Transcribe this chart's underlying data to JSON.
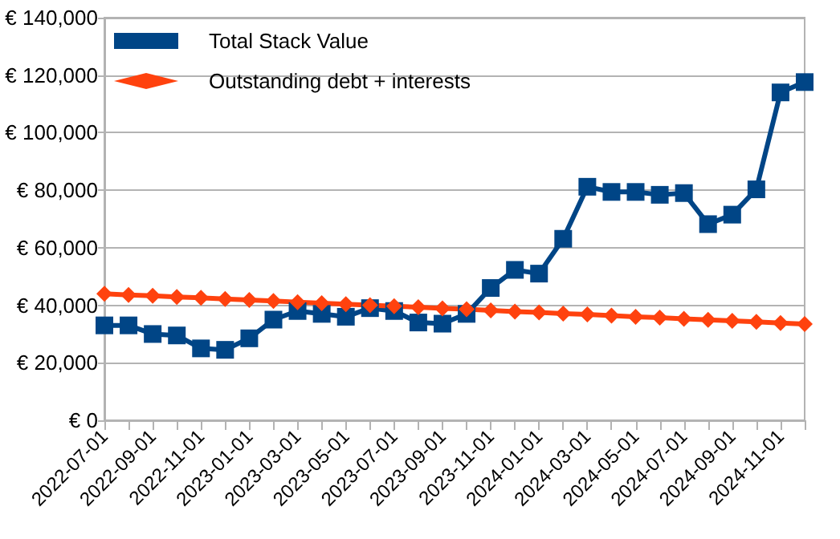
{
  "chart_data": {
    "type": "line",
    "categories": [
      "2022-07-01",
      null,
      "2022-09-01",
      null,
      "2022-11-01",
      null,
      "2023-01-01",
      null,
      "2023-03-01",
      null,
      "2023-05-01",
      null,
      "2023-07-01",
      null,
      "2023-09-01",
      null,
      "2023-11-01",
      null,
      "2024-01-01",
      null,
      "2024-03-01",
      null,
      "2024-05-01",
      null,
      "2024-07-01",
      null,
      "2024-09-01",
      null,
      "2024-11-01",
      null
    ],
    "series": [
      {
        "name": "Total Stack Value",
        "color": "#004586",
        "marker": "square",
        "values": [
          33000,
          33000,
          30000,
          29500,
          25000,
          24500,
          28500,
          35000,
          38000,
          37000,
          36000,
          39000,
          38000,
          34000,
          33600,
          37000,
          46000,
          52300,
          51000,
          63100,
          81200,
          79400,
          79400,
          78400,
          79000,
          68200,
          71500,
          80300,
          114000,
          117600
        ]
      },
      {
        "name": "Outstanding debt + interests",
        "color": "#ff420e",
        "marker": "diamond",
        "values": [
          44000,
          43600,
          43300,
          42900,
          42600,
          42200,
          41800,
          41500,
          41100,
          40700,
          40400,
          40000,
          39700,
          39300,
          38900,
          38600,
          38200,
          37800,
          37500,
          37100,
          36800,
          36400,
          36000,
          35700,
          35300,
          34900,
          34600,
          34200,
          33800,
          33500
        ]
      }
    ],
    "ylim": [
      0,
      140000
    ],
    "yticks": [
      {
        "value": 0,
        "label": "€ 0"
      },
      {
        "value": 20000,
        "label": "€ 20,000"
      },
      {
        "value": 40000,
        "label": "€ 40,000"
      },
      {
        "value": 60000,
        "label": "€ 60,000"
      },
      {
        "value": 80000,
        "label": "€ 80,000"
      },
      {
        "value": 100000,
        "label": "€ 100,000"
      },
      {
        "value": 120000,
        "label": "€ 120,000"
      },
      {
        "value": 140000,
        "label": "€ 140,000"
      }
    ],
    "grid": "y",
    "legend": "top left",
    "line_style": "solid"
  }
}
